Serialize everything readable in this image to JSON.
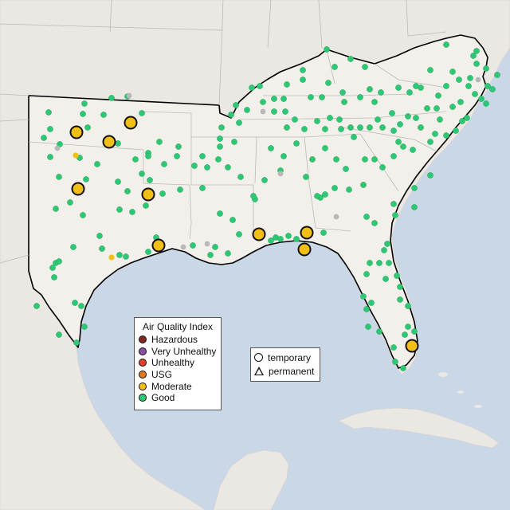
{
  "legend": {
    "title": "Air Quality Index",
    "categories": [
      {
        "label": "Hazardous",
        "color": "#7e2a22"
      },
      {
        "label": "Very Unhealthy",
        "color": "#8b4ea6"
      },
      {
        "label": "Unhealthy",
        "color": "#e0402b"
      },
      {
        "label": "USG",
        "color": "#e07a1f"
      },
      {
        "label": "Moderate",
        "color": "#f2c014"
      },
      {
        "label": "Good",
        "color": "#2ec774"
      }
    ],
    "no_data_color": "#b8b8b8"
  },
  "shape_legend": {
    "temporary": "temporary",
    "permanent": "permanent"
  },
  "colors": {
    "water": "#c9d7e6",
    "land": "#ebe7e2",
    "region_land": "#f2efeb",
    "borders": "#bdbab6",
    "region_outline": "#000000"
  }
}
